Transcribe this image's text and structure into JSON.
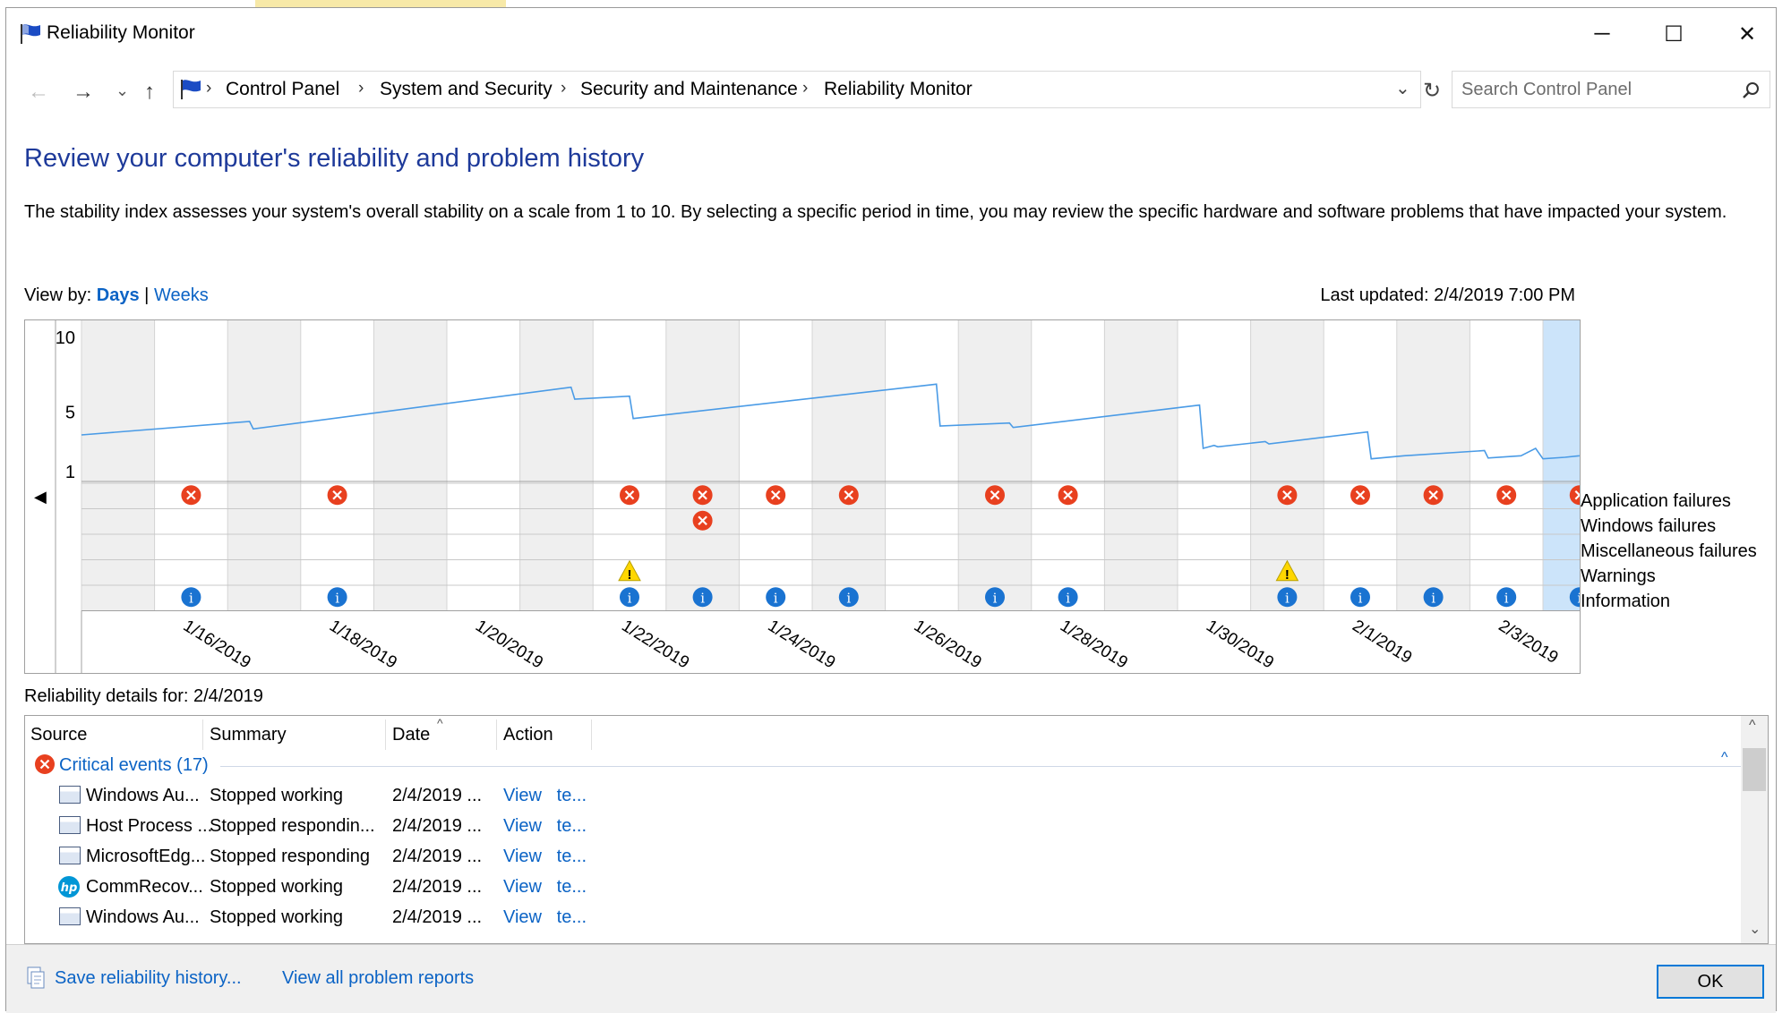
{
  "window": {
    "title": "Reliability Monitor",
    "controls": {
      "minimize": "─",
      "maximize": "☐",
      "close": "✕"
    }
  },
  "nav": {
    "back": "←",
    "forward": "→",
    "recent": "⌄",
    "up": "↑",
    "breadcrumbs": [
      "Control Panel",
      "System and Security",
      "Security and Maintenance",
      "Reliability Monitor"
    ],
    "crumb_sep": "›",
    "dropdown": "⌄",
    "refresh": "↻",
    "search_placeholder": "Search Control Panel"
  },
  "main": {
    "heading": "Review your computer's reliability and problem history",
    "description": "The stability index assesses your system's overall stability on a scale from 1 to 10. By selecting a specific period in time, you may review the specific hardware and software problems that have impacted your system.",
    "view_by_label": "View by:",
    "view_days": "Days",
    "view_sep": "|",
    "view_weeks": "Weeks",
    "last_updated": "Last updated: 2/4/2019 7:00 PM"
  },
  "chart_data": {
    "type": "line",
    "yticks": [
      "10",
      "5",
      "1"
    ],
    "ylim": [
      1,
      10
    ],
    "x": [
      "1/15/2019",
      "1/16/2019",
      "1/17/2019",
      "1/18/2019",
      "1/19/2019",
      "1/20/2019",
      "1/21/2019",
      "1/22/2019",
      "1/23/2019",
      "1/24/2019",
      "1/25/2019",
      "1/26/2019",
      "1/27/2019",
      "1/28/2019",
      "1/29/2019",
      "1/30/2019",
      "1/31/2019",
      "2/1/2019",
      "2/2/2019",
      "2/3/2019",
      "2/4/2019"
    ],
    "xtick_labels": [
      "1/16/2019",
      "1/18/2019",
      "1/20/2019",
      "1/22/2019",
      "1/24/2019",
      "1/26/2019",
      "1/28/2019",
      "1/30/2019",
      "2/1/2019",
      "2/3/2019"
    ],
    "stability_series": [
      {
        "x": 0.0,
        "y": 3.4
      },
      {
        "x": 2.3,
        "y": 4.3
      },
      {
        "x": 2.35,
        "y": 3.8
      },
      {
        "x": 6.7,
        "y": 6.6
      },
      {
        "x": 6.75,
        "y": 5.8
      },
      {
        "x": 7.5,
        "y": 6.0
      },
      {
        "x": 7.55,
        "y": 4.5
      },
      {
        "x": 11.7,
        "y": 6.8
      },
      {
        "x": 11.75,
        "y": 4.0
      },
      {
        "x": 12.7,
        "y": 4.2
      },
      {
        "x": 12.75,
        "y": 3.9
      },
      {
        "x": 15.3,
        "y": 5.4
      },
      {
        "x": 15.35,
        "y": 2.5
      },
      {
        "x": 15.5,
        "y": 2.7
      },
      {
        "x": 15.55,
        "y": 2.6
      },
      {
        "x": 16.2,
        "y": 2.95
      },
      {
        "x": 16.25,
        "y": 2.8
      },
      {
        "x": 17.6,
        "y": 3.6
      },
      {
        "x": 17.65,
        "y": 1.8
      },
      {
        "x": 18.1,
        "y": 2.0
      },
      {
        "x": 19.2,
        "y": 2.35
      },
      {
        "x": 19.25,
        "y": 1.85
      },
      {
        "x": 19.7,
        "y": 2.0
      },
      {
        "x": 19.9,
        "y": 2.5
      },
      {
        "x": 20.0,
        "y": 1.8
      },
      {
        "x": 20.3,
        "y": 1.9
      },
      {
        "x": 20.5,
        "y": 2.0
      }
    ],
    "legend_rows": [
      "Application failures",
      "Windows failures",
      "Miscellaneous failures",
      "Warnings",
      "Information"
    ],
    "events": {
      "application_failures": [
        1,
        3,
        7,
        8,
        9,
        10,
        12,
        13,
        16,
        17,
        18,
        19,
        20
      ],
      "windows_failures": [
        8
      ],
      "warnings": [
        7,
        16
      ],
      "information": [
        1,
        3,
        7,
        8,
        9,
        10,
        12,
        13,
        16,
        17,
        18,
        19,
        20
      ]
    },
    "selected_index": 20,
    "grid": true
  },
  "details": {
    "label": "Reliability details for: 2/4/2019",
    "columns": [
      "Source",
      "Summary",
      "Date",
      "Action"
    ],
    "group": "Critical events (17)",
    "rows": [
      {
        "source": "Windows Au...",
        "summary": "Stopped working",
        "date": "2/4/2019 ...",
        "action": "View   te...",
        "icon": "app-window-icon"
      },
      {
        "source": "Host Process ...",
        "summary": "Stopped respondin...",
        "date": "2/4/2019 ...",
        "action": "View   te...",
        "icon": "app-window-icon"
      },
      {
        "source": "MicrosoftEdg...",
        "summary": "Stopped responding",
        "date": "2/4/2019 ...",
        "action": "View   te...",
        "icon": "app-window-icon"
      },
      {
        "source": "CommRecov...",
        "summary": "Stopped working",
        "date": "2/4/2019 ...",
        "action": "View   te...",
        "icon": "hp-logo-icon"
      },
      {
        "source": "Windows Au...",
        "summary": "Stopped working",
        "date": "2/4/2019 ...",
        "action": "View   te...",
        "icon": "app-window-icon"
      }
    ]
  },
  "footer": {
    "save": "Save reliability history...",
    "view_all": "View all problem reports",
    "ok": "OK"
  },
  "colors": {
    "accent": "#0078d7",
    "heading": "#1e3a9a",
    "link": "#0b63c5",
    "error": "#e8401f",
    "info": "#1a73d1",
    "warning": "#ffd700",
    "line": "#4a9be6",
    "selected": "#cce4fa"
  }
}
